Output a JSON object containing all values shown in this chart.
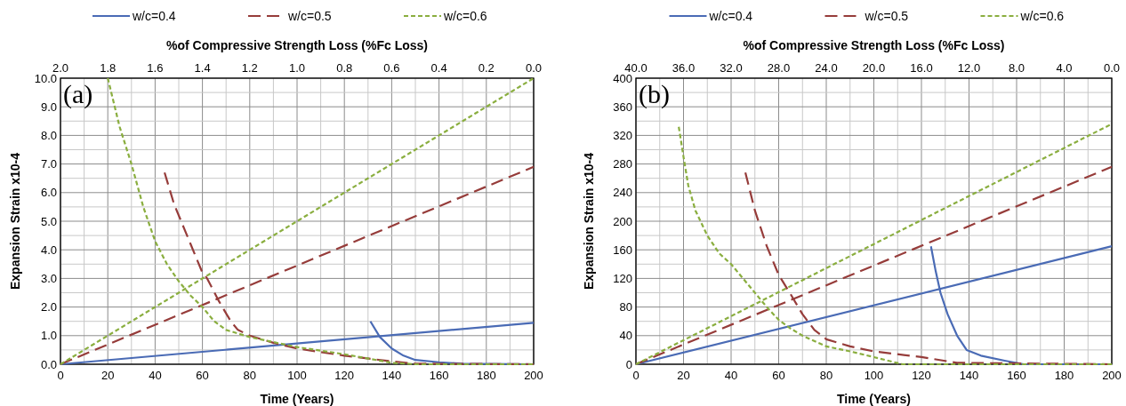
{
  "chart_data": [
    {
      "type": "line",
      "annotations": [
        "(a)"
      ],
      "xlabel": "Time (Years)",
      "ylabel": "Expansion Strain x10-4",
      "x2label": "%of Compressive Strength Loss  (%Fc Loss)",
      "legend": "top",
      "grid": true,
      "xlim": [
        0,
        200
      ],
      "xticks": [
        0,
        {
          "value": 10,
          "label": null
        },
        20,
        {
          "value": 30,
          "label": null
        },
        40,
        {
          "value": 50,
          "label": null
        },
        60,
        {
          "value": 70,
          "label": null
        },
        80,
        {
          "value": 90,
          "label": null
        },
        100,
        {
          "value": 110,
          "label": null
        },
        120,
        {
          "value": 130,
          "label": null
        },
        140,
        {
          "value": 150,
          "label": null
        },
        160,
        {
          "value": 170,
          "label": null
        },
        180,
        {
          "value": 190,
          "label": null
        },
        200
      ],
      "x2lim": [
        2,
        0
      ],
      "x2ticks": [
        {
          "value": 2,
          "label": "2.0"
        },
        {
          "value": 1.8,
          "label": "1.8"
        },
        {
          "value": 1.6,
          "label": "1.6"
        },
        {
          "value": 1.4,
          "label": "1.4"
        },
        {
          "value": 1.2,
          "label": "1.2"
        },
        {
          "value": 1,
          "label": "1.0"
        },
        {
          "value": 0.8,
          "label": "0.8"
        },
        {
          "value": 0.6,
          "label": "0.6"
        },
        {
          "value": 0.4,
          "label": "0.4"
        },
        {
          "value": 0.2,
          "label": "0.2"
        },
        {
          "value": 0,
          "label": "0.0"
        }
      ],
      "ylim": [
        0,
        10
      ],
      "yticks": [
        {
          "value": 0,
          "label": "0.0"
        },
        {
          "value": 0.5,
          "label": null
        },
        {
          "value": 1,
          "label": "1.0"
        },
        {
          "value": 1.5,
          "label": null
        },
        {
          "value": 2,
          "label": "2.0"
        },
        {
          "value": 2.5,
          "label": null
        },
        {
          "value": 3,
          "label": "3.0"
        },
        {
          "value": 3.5,
          "label": null
        },
        {
          "value": 4,
          "label": "4.0"
        },
        {
          "value": 4.5,
          "label": null
        },
        {
          "value": 5,
          "label": "5.0"
        },
        {
          "value": 5.5,
          "label": null
        },
        {
          "value": 6,
          "label": "6.0"
        },
        {
          "value": 6.5,
          "label": null
        },
        {
          "value": 7,
          "label": "7.0"
        },
        {
          "value": 7.5,
          "label": null
        },
        {
          "value": 8,
          "label": "8.0"
        },
        {
          "value": 8.5,
          "label": null
        },
        {
          "value": 9,
          "label": "9.0"
        },
        {
          "value": 9.5,
          "label": null
        },
        {
          "value": 10,
          "label": "10.0"
        }
      ],
      "series": [
        {
          "name": "w/c=0.4",
          "color": "#4a6bb5",
          "line_style": "solid",
          "x": [
            0,
            200
          ],
          "values": [
            0,
            1.45
          ]
        },
        {
          "name": "w/c=0.5",
          "color": "#963c3a",
          "line_style": "dashed",
          "x": [
            0,
            200
          ],
          "values": [
            0,
            6.9
          ]
        },
        {
          "name": "w/c=0.6",
          "color": "#8aae3f",
          "line_style": "dotted",
          "x": [
            0,
            200
          ],
          "values": [
            0,
            10
          ]
        },
        {
          "axis": "x2",
          "color": "#4a6bb5",
          "line_style": "solid",
          "x": [
            0.69,
            0.65,
            0.6,
            0.55,
            0.5,
            0.4,
            0.3,
            0
          ],
          "values": [
            1.5,
            0.95,
            0.55,
            0.3,
            0.15,
            0.07,
            0.02,
            0
          ]
        },
        {
          "axis": "x2",
          "color": "#963c3a",
          "line_style": "dashed",
          "x": [
            1.56,
            1.52,
            1.45,
            1.4,
            1.38,
            1.33,
            1.28,
            1.25,
            1.2,
            1.1,
            1,
            0.8,
            0.6,
            0.5,
            0
          ],
          "values": [
            6.7,
            5.6,
            4.2,
            3.2,
            3,
            2.2,
            1.5,
            1.2,
            1,
            0.75,
            0.55,
            0.3,
            0.1,
            0.02,
            0
          ]
        },
        {
          "axis": "x2",
          "color": "#8aae3f",
          "line_style": "dotted",
          "x": [
            1.8,
            1.75,
            1.7,
            1.65,
            1.6,
            1.55,
            1.5,
            1.45,
            1.4,
            1.35,
            1.3,
            1.2,
            1,
            0.8,
            0.6,
            0.5,
            0
          ],
          "values": [
            10,
            8.3,
            7,
            5.5,
            4.3,
            3.5,
            2.9,
            2.4,
            2,
            1.5,
            1.2,
            0.95,
            0.6,
            0.35,
            0.05,
            0,
            0
          ]
        }
      ]
    },
    {
      "type": "line",
      "annotations": [
        "(b)"
      ],
      "xlabel": "Time (Years)",
      "ylabel": "Expansion Strain x10-4",
      "x2label": "%of Compressive Strength Loss  (%Fc Loss)",
      "legend": "top",
      "grid": true,
      "xlim": [
        0,
        200
      ],
      "xticks": [
        0,
        {
          "value": 10,
          "label": null
        },
        20,
        {
          "value": 30,
          "label": null
        },
        40,
        {
          "value": 50,
          "label": null
        },
        60,
        {
          "value": 70,
          "label": null
        },
        80,
        {
          "value": 90,
          "label": null
        },
        100,
        {
          "value": 110,
          "label": null
        },
        120,
        {
          "value": 130,
          "label": null
        },
        140,
        {
          "value": 150,
          "label": null
        },
        160,
        {
          "value": 170,
          "label": null
        },
        180,
        {
          "value": 190,
          "label": null
        },
        200
      ],
      "x2lim": [
        40,
        0
      ],
      "x2ticks": [
        {
          "value": 40,
          "label": "40.0"
        },
        {
          "value": 36,
          "label": "36.0"
        },
        {
          "value": 32,
          "label": "32.0"
        },
        {
          "value": 28,
          "label": "28.0"
        },
        {
          "value": 24,
          "label": "24.0"
        },
        {
          "value": 20,
          "label": "20.0"
        },
        {
          "value": 16,
          "label": "16.0"
        },
        {
          "value": 12,
          "label": "12.0"
        },
        {
          "value": 8,
          "label": "8.0"
        },
        {
          "value": 4,
          "label": "4.0"
        },
        {
          "value": 0,
          "label": "0.0"
        }
      ],
      "ylim": [
        0,
        400
      ],
      "yticks": [
        0,
        {
          "value": 20,
          "label": null
        },
        40,
        {
          "value": 60,
          "label": null
        },
        80,
        {
          "value": 100,
          "label": null
        },
        120,
        {
          "value": 140,
          "label": null
        },
        160,
        {
          "value": 180,
          "label": null
        },
        200,
        {
          "value": 220,
          "label": null
        },
        240,
        {
          "value": 260,
          "label": null
        },
        280,
        {
          "value": 300,
          "label": null
        },
        320,
        {
          "value": 340,
          "label": null
        },
        360,
        {
          "value": 380,
          "label": null
        },
        400
      ],
      "series": [
        {
          "name": "w/c=0.4",
          "color": "#4a6bb5",
          "line_style": "solid",
          "x": [
            0,
            200
          ],
          "values": [
            0,
            165
          ]
        },
        {
          "name": "w/c=0.5",
          "color": "#963c3a",
          "line_style": "dashed",
          "x": [
            0,
            200
          ],
          "values": [
            0,
            276
          ]
        },
        {
          "name": "w/c=0.6",
          "color": "#8aae3f",
          "line_style": "dotted",
          "x": [
            0,
            200
          ],
          "values": [
            0,
            336
          ]
        },
        {
          "axis": "x2",
          "color": "#4a6bb5",
          "line_style": "solid",
          "x": [
            15.2,
            14.8,
            14.4,
            13.8,
            13,
            12.2,
            11,
            9,
            7.4,
            0
          ],
          "values": [
            165,
            130,
            100,
            70,
            40,
            20,
            12,
            5,
            0,
            0
          ]
        },
        {
          "axis": "x2",
          "color": "#963c3a",
          "line_style": "dashed",
          "x": [
            30.8,
            30,
            29,
            28,
            27,
            26,
            25,
            24,
            22,
            20,
            16,
            13,
            0
          ],
          "values": [
            268,
            215,
            165,
            125,
            98,
            70,
            48,
            35,
            25,
            18,
            10,
            2,
            0
          ]
        },
        {
          "axis": "x2",
          "color": "#8aae3f",
          "line_style": "dotted",
          "x": [
            36.4,
            36,
            35.6,
            35,
            34,
            33,
            32,
            31,
            30,
            29,
            28,
            27,
            26,
            24,
            22,
            20,
            17.6,
            0
          ],
          "values": [
            332,
            290,
            250,
            215,
            180,
            155,
            140,
            120,
            100,
            80,
            62,
            50,
            40,
            25,
            18,
            10,
            0,
            0
          ]
        }
      ]
    }
  ]
}
